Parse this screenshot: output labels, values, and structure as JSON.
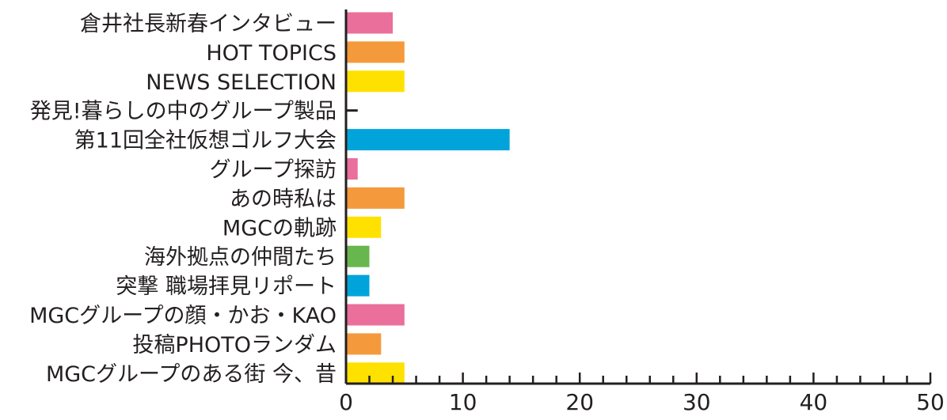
{
  "chart_data": {
    "type": "bar",
    "orientation": "horizontal",
    "categories": [
      "倉井社長新春インタビュー",
      "HOT TOPICS",
      "NEWS SELECTION",
      "発見!暮らしの中のグループ製品",
      "第11回全社仮想ゴルフ大会",
      "グループ探訪",
      "あの時私は",
      "MGCの軌跡",
      "海外拠点の仲間たち",
      "突撃 職場拝見リポート",
      "MGCグループの顔・かお・KAO",
      "投稿PHOTOランダム",
      "MGCグループのある街 今、昔"
    ],
    "values": [
      4,
      5,
      5,
      1,
      14,
      1,
      5,
      3,
      2,
      2,
      5,
      3,
      5
    ],
    "colors": [
      "#ea6f9b",
      "#f49a3c",
      "#ffe100",
      "#231f20",
      "#00a4db",
      "#ea6f9b",
      "#f49a3c",
      "#ffe100",
      "#67b74e",
      "#00a4db",
      "#ea6f9b",
      "#f49a3c",
      "#ffe100"
    ],
    "xlim": [
      0,
      50
    ],
    "x_ticks": [
      "0",
      "10",
      "20",
      "30",
      "40",
      "50"
    ],
    "title": "",
    "xlabel": "",
    "ylabel": "",
    "grid": false,
    "legend": "none"
  }
}
